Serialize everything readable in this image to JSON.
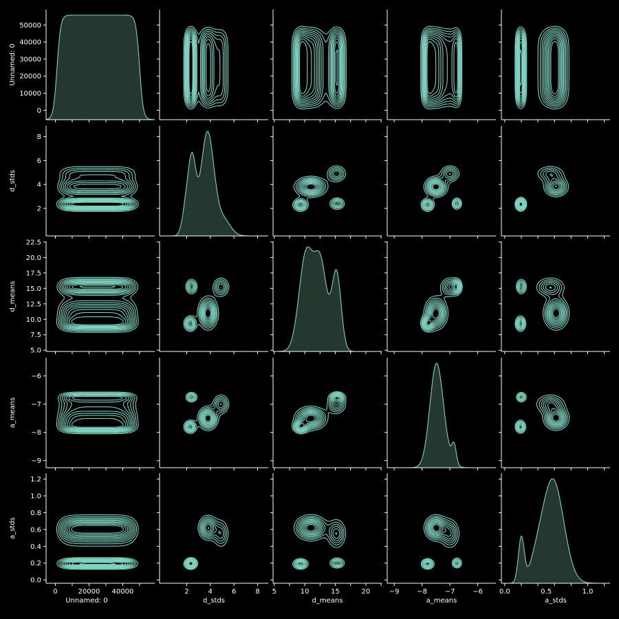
{
  "chart_data": {
    "type": "pairplot",
    "variables": [
      "Unnamed: 0",
      "d_stds",
      "d_means",
      "a_means",
      "a_stds"
    ],
    "diagonal": "kde",
    "off_diagonal": "kde-contour",
    "colors": {
      "background": "#000000",
      "line": "#7fd1c0",
      "fill": "#24382f",
      "axis": "#ffffff"
    },
    "axes": [
      {
        "name": "Unnamed: 0",
        "range": [
          -5500,
          59000
        ],
        "ticks": [
          0,
          10000,
          20000,
          30000,
          40000,
          50000
        ],
        "x_tick_labels": [
          "0",
          "20000",
          "40000"
        ],
        "y_tick_labels": [
          "0",
          "10000",
          "20000",
          "30000",
          "40000",
          "50000"
        ]
      },
      {
        "name": "d_stds",
        "range": [
          -0.3,
          8.9
        ],
        "ticks": [
          2,
          4,
          6,
          8
        ],
        "x_tick_labels": [
          "2",
          "4",
          "6",
          "8"
        ],
        "y_tick_labels": [
          "2",
          "4",
          "6",
          "8"
        ]
      },
      {
        "name": "d_means",
        "range": [
          4.8,
          22.6
        ],
        "ticks": [
          5.0,
          7.5,
          10.0,
          12.5,
          15.0,
          17.5,
          20.0,
          22.5
        ],
        "x_tick_labels": [
          "5",
          "10",
          "15",
          "20"
        ],
        "y_tick_labels": [
          "5.0",
          "7.5",
          "10.0",
          "12.5",
          "15.0",
          "17.5",
          "20.0",
          "22.5"
        ]
      },
      {
        "name": "a_means",
        "range": [
          -9.25,
          -5.35
        ],
        "ticks": [
          -9,
          -8,
          -7,
          -6
        ],
        "x_tick_labels": [
          "−9",
          "−8",
          "−7",
          "−6"
        ],
        "y_tick_labels": [
          "−9",
          "−8",
          "−7",
          "−6"
        ]
      },
      {
        "name": "a_stds",
        "range": [
          -0.04,
          1.27
        ],
        "ticks": [
          0.0,
          0.2,
          0.4,
          0.6,
          0.8,
          1.0,
          1.2
        ],
        "x_tick_labels": [
          "0.0",
          "0.5",
          "1.0"
        ],
        "y_tick_labels": [
          "0.0",
          "0.2",
          "0.4",
          "0.6",
          "0.8",
          "1.0",
          "1.2"
        ]
      }
    ],
    "diagonal_kde": [
      {
        "variable": "Unnamed: 0",
        "peaks": [
          {
            "x": 25000,
            "h": 1.0,
            "s": 0
          }
        ],
        "plateau": [
          1000,
          50000
        ],
        "edge_sd": 2600
      },
      {
        "variable": "d_stds",
        "peaks": [
          {
            "x": 2.45,
            "h": 0.55,
            "s": 0.33
          },
          {
            "x": 3.75,
            "h": 0.78,
            "s": 0.55
          },
          {
            "x": 1.9,
            "h": 0.18,
            "s": 0.3
          },
          {
            "x": 5.1,
            "h": 0.12,
            "s": 0.6
          }
        ]
      },
      {
        "variable": "d_means",
        "peaks": [
          {
            "x": 10.2,
            "h": 0.62,
            "s": 1.15
          },
          {
            "x": 12.6,
            "h": 0.55,
            "s": 1.05
          },
          {
            "x": 15.2,
            "h": 0.5,
            "s": 0.75
          }
        ]
      },
      {
        "variable": "a_means",
        "peaks": [
          {
            "x": -7.5,
            "h": 1.0,
            "s": 0.23
          },
          {
            "x": -7.25,
            "h": 0.18,
            "s": 0.25
          },
          {
            "x": -6.85,
            "h": 0.2,
            "s": 0.08
          }
        ]
      },
      {
        "variable": "a_stds",
        "peaks": [
          {
            "x": 0.2,
            "h": 0.4,
            "s": 0.035
          },
          {
            "x": 0.58,
            "h": 0.93,
            "s": 0.13
          },
          {
            "x": 0.38,
            "h": 0.12,
            "s": 0.08
          }
        ]
      }
    ],
    "clusters": [
      {
        "w": 1.0,
        "m": [
          25000,
          3.8,
          11.0,
          -7.5,
          0.62
        ],
        "s": [
          13000,
          0.45,
          1.4,
          0.22,
          0.08
        ]
      },
      {
        "w": 0.75,
        "m": [
          25000,
          2.3,
          9.3,
          -7.8,
          0.19
        ],
        "s": [
          13000,
          0.3,
          0.7,
          0.13,
          0.035
        ]
      },
      {
        "w": 0.6,
        "m": [
          25000,
          2.4,
          15.3,
          -6.75,
          0.2
        ],
        "s": [
          13000,
          0.28,
          0.7,
          0.1,
          0.035
        ]
      },
      {
        "w": 0.55,
        "m": [
          25000,
          4.9,
          15.2,
          -7.0,
          0.55
        ],
        "s": [
          13000,
          0.4,
          0.9,
          0.2,
          0.1
        ]
      }
    ],
    "contour_levels": 10,
    "grid": false,
    "legend": "none"
  }
}
